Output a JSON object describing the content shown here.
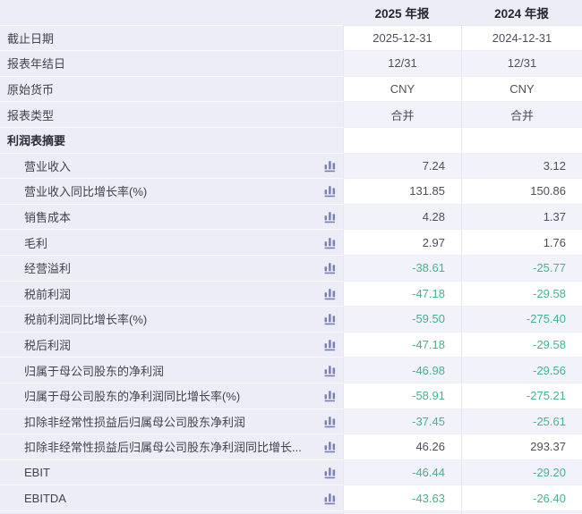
{
  "table": {
    "columns": [
      "",
      "2025 年报",
      "2024 年报"
    ],
    "rows": [
      {
        "label": "截止日期",
        "indent": false,
        "section": false,
        "icon": false,
        "align": "center",
        "values": [
          "2025-12-31",
          "2024-12-31"
        ]
      },
      {
        "label": "报表年结日",
        "indent": false,
        "section": false,
        "icon": false,
        "align": "center",
        "values": [
          "12/31",
          "12/31"
        ]
      },
      {
        "label": "原始货币",
        "indent": false,
        "section": false,
        "icon": false,
        "align": "center",
        "values": [
          "CNY",
          "CNY"
        ]
      },
      {
        "label": "报表类型",
        "indent": false,
        "section": false,
        "icon": false,
        "align": "center",
        "values": [
          "合并",
          "合并"
        ]
      },
      {
        "label": "利润表摘要",
        "indent": false,
        "section": true,
        "icon": false,
        "align": "center",
        "values": [
          "",
          ""
        ]
      },
      {
        "label": "营业收入",
        "indent": true,
        "section": false,
        "icon": true,
        "align": "right",
        "values": [
          "7.24",
          "3.12"
        ]
      },
      {
        "label": "营业收入同比增长率(%)",
        "indent": true,
        "section": false,
        "icon": true,
        "align": "right",
        "values": [
          "131.85",
          "150.86"
        ]
      },
      {
        "label": "销售成本",
        "indent": true,
        "section": false,
        "icon": true,
        "align": "right",
        "values": [
          "4.28",
          "1.37"
        ]
      },
      {
        "label": "毛利",
        "indent": true,
        "section": false,
        "icon": true,
        "align": "right",
        "values": [
          "2.97",
          "1.76"
        ]
      },
      {
        "label": "经营溢利",
        "indent": true,
        "section": false,
        "icon": true,
        "align": "right",
        "values": [
          "-38.61",
          "-25.77"
        ]
      },
      {
        "label": "税前利润",
        "indent": true,
        "section": false,
        "icon": true,
        "align": "right",
        "values": [
          "-47.18",
          "-29.58"
        ]
      },
      {
        "label": "税前利润同比增长率(%)",
        "indent": true,
        "section": false,
        "icon": true,
        "align": "right",
        "values": [
          "-59.50",
          "-275.40"
        ]
      },
      {
        "label": "税后利润",
        "indent": true,
        "section": false,
        "icon": true,
        "align": "right",
        "values": [
          "-47.18",
          "-29.58"
        ]
      },
      {
        "label": "归属于母公司股东的净利润",
        "indent": true,
        "section": false,
        "icon": true,
        "align": "right",
        "values": [
          "-46.98",
          "-29.56"
        ]
      },
      {
        "label": "归属于母公司股东的净利润同比增长率(%)",
        "indent": true,
        "section": false,
        "icon": true,
        "align": "right",
        "values": [
          "-58.91",
          "-275.21"
        ]
      },
      {
        "label": "扣除非经常性损益后归属母公司股东净利润",
        "indent": true,
        "section": false,
        "icon": true,
        "align": "right",
        "values": [
          "-37.45",
          "-25.61"
        ]
      },
      {
        "label": "扣除非经常性损益后归属母公司股东净利润同比增长...",
        "indent": true,
        "section": false,
        "icon": true,
        "align": "right",
        "values": [
          "46.26",
          "293.37"
        ]
      },
      {
        "label": "EBIT",
        "indent": true,
        "section": false,
        "icon": true,
        "align": "right",
        "values": [
          "-46.44",
          "-29.20"
        ]
      },
      {
        "label": "EBITDA",
        "indent": true,
        "section": false,
        "icon": true,
        "align": "right",
        "values": [
          "-43.63",
          "-26.40"
        ]
      },
      {
        "label": "",
        "indent": false,
        "section": false,
        "icon": false,
        "align": "center",
        "values": [
          "",
          ""
        ]
      }
    ]
  },
  "icons": {
    "bar_chart": "bar-chart-icon"
  },
  "colors": {
    "header_bg": "#ecedf7",
    "label_col_bg": "#ecedf7",
    "row_alt_bg": "#f2f3fa",
    "row_bg": "#ffffff",
    "negative_value": "#48b18e",
    "value_text": "#4d4f59",
    "label_text": "#41434c",
    "icon": "#7a7fb6",
    "grid_line": "#e5e7f1"
  }
}
